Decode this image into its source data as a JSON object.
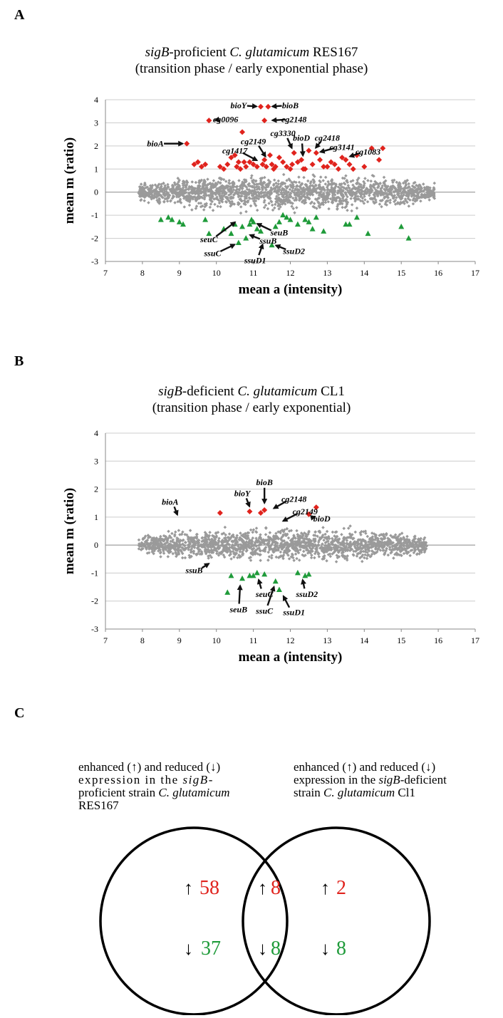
{
  "panel_labels": {
    "a": "A",
    "b": "B",
    "c": "C"
  },
  "colors": {
    "background": "#9a9a9a",
    "enhanced": "#e0231d",
    "reduced": "#1f9b3a",
    "arrow": "#111111",
    "grid": "#cccccc"
  },
  "chart_data": [
    {
      "id": "A",
      "type": "scatter",
      "title_line1_pre": "sigB",
      "title_line1_post": "-proficient ",
      "title_line1_species": "C. glutamicum",
      "title_line1_strain": " RES167",
      "title_line2": "(transition phase / early exponential phase)",
      "xlabel": "mean a (intensity)",
      "ylabel": "mean m (ratio)",
      "xlim": [
        7,
        17
      ],
      "ylim": [
        -3,
        4
      ],
      "xticks": [
        "7",
        "8",
        "9",
        "10",
        "11",
        "12",
        "13",
        "14",
        "15",
        "16",
        "17"
      ],
      "yticks": [
        "-3",
        "-2",
        "-1",
        "0",
        "1",
        "2",
        "3",
        "4"
      ],
      "grid": true,
      "background_band": {
        "x_min": 7.9,
        "x_max": 15.9,
        "y_max": 0.9,
        "y_min": -1.0
      },
      "series": [
        {
          "marker": "diamond",
          "color": "enhanced",
          "points": [
            [
              9.2,
              2.1
            ],
            [
              9.8,
              3.1
            ],
            [
              10.7,
              2.6
            ],
            [
              11.3,
              3.1
            ],
            [
              11.2,
              3.7
            ],
            [
              11.4,
              3.7
            ],
            [
              12.1,
              1.7
            ],
            [
              12.3,
              1.4
            ],
            [
              12.5,
              1.8
            ],
            [
              12.7,
              1.7
            ],
            [
              13.4,
              1.5
            ],
            [
              13.8,
              1.6
            ],
            [
              14.2,
              1.9
            ],
            [
              14.5,
              1.9
            ],
            [
              14.4,
              1.4
            ],
            [
              9.4,
              1.2
            ],
            [
              9.6,
              1.1
            ],
            [
              9.5,
              1.3
            ],
            [
              10.1,
              1.1
            ],
            [
              10.3,
              1.2
            ],
            [
              10.5,
              1.6
            ],
            [
              10.6,
              1.3
            ],
            [
              10.8,
              1.1
            ],
            [
              11.0,
              1.2
            ],
            [
              11.3,
              1.4
            ],
            [
              11.5,
              1.2
            ],
            [
              11.6,
              1.1
            ],
            [
              11.9,
              1.1
            ],
            [
              12.2,
              1.3
            ],
            [
              12.6,
              1.2
            ],
            [
              12.9,
              1.1
            ],
            [
              13.1,
              1.3
            ],
            [
              13.6,
              1.2
            ],
            [
              10.4,
              1.5
            ],
            [
              11.1,
              1.1
            ],
            [
              11.7,
              1.5
            ],
            [
              12.0,
              1.0
            ],
            [
              13.3,
              1.0
            ],
            [
              10.9,
              1.3
            ],
            [
              11.45,
              1.6
            ],
            [
              12.4,
              1.0
            ],
            [
              10.2,
              1.0
            ],
            [
              9.7,
              1.2
            ],
            [
              10.65,
              1.0
            ],
            [
              11.25,
              1.2
            ],
            [
              11.8,
              1.3
            ],
            [
              12.8,
              1.4
            ],
            [
              13.0,
              1.1
            ],
            [
              14.0,
              1.1
            ],
            [
              13.7,
              1.0
            ],
            [
              10.55,
              1.1
            ],
            [
              11.55,
              1.0
            ],
            [
              12.05,
              1.2
            ],
            [
              12.35,
              1.0
            ],
            [
              13.2,
              1.2
            ],
            [
              13.5,
              1.4
            ],
            [
              10.75,
              1.3
            ],
            [
              11.35,
              1.1
            ]
          ]
        },
        {
          "marker": "triangle",
          "color": "reduced",
          "points": [
            [
              8.5,
              -1.2
            ],
            [
              8.7,
              -1.1
            ],
            [
              8.8,
              -1.2
            ],
            [
              9.0,
              -1.3
            ],
            [
              9.1,
              -1.4
            ],
            [
              9.7,
              -1.2
            ],
            [
              9.8,
              -1.8
            ],
            [
              10.2,
              -1.6
            ],
            [
              10.4,
              -1.8
            ],
            [
              10.5,
              -1.4
            ],
            [
              10.6,
              -2.2
            ],
            [
              10.8,
              -2.0
            ],
            [
              10.9,
              -1.4
            ],
            [
              11.0,
              -1.3
            ],
            [
              11.2,
              -1.7
            ],
            [
              11.5,
              -2.3
            ],
            [
              11.6,
              -1.5
            ],
            [
              11.7,
              -1.3
            ],
            [
              11.9,
              -1.1
            ],
            [
              12.0,
              -1.2
            ],
            [
              12.2,
              -1.4
            ],
            [
              12.5,
              -1.3
            ],
            [
              12.7,
              -1.1
            ],
            [
              12.9,
              -1.7
            ],
            [
              13.5,
              -1.4
            ],
            [
              13.8,
              -1.1
            ],
            [
              14.1,
              -1.8
            ],
            [
              15.0,
              -1.5
            ],
            [
              15.2,
              -2.0
            ],
            [
              10.7,
              -1.5
            ],
            [
              10.95,
              -1.2
            ],
            [
              11.1,
              -1.6
            ],
            [
              11.8,
              -1.0
            ],
            [
              12.4,
              -1.2
            ],
            [
              12.6,
              -1.6
            ],
            [
              13.6,
              -1.4
            ]
          ]
        }
      ],
      "annotations": [
        {
          "text": "bioY",
          "tx": 10.6,
          "ty": 3.75,
          "ax": 11.2,
          "ay": 3.7
        },
        {
          "text": "bioB",
          "tx": 12.0,
          "ty": 3.75,
          "ax": 11.4,
          "ay": 3.7
        },
        {
          "text": "cg0096",
          "tx": 10.25,
          "ty": 3.15,
          "ax": 9.85,
          "ay": 3.1
        },
        {
          "text": "cg2148",
          "tx": 12.1,
          "ty": 3.15,
          "ax": 11.4,
          "ay": 3.1
        },
        {
          "text": "bioA",
          "tx": 8.35,
          "ty": 2.1,
          "ax": 9.2,
          "ay": 2.1
        },
        {
          "text": "cg3330",
          "tx": 11.8,
          "ty": 2.55,
          "ax": 12.1,
          "ay": 1.75
        },
        {
          "text": "bioD",
          "tx": 12.3,
          "ty": 2.35,
          "ax": 12.35,
          "ay": 1.4
        },
        {
          "text": "cg2418",
          "tx": 13.0,
          "ty": 2.35,
          "ax": 12.6,
          "ay": 1.8
        },
        {
          "text": "cg2149",
          "tx": 11.0,
          "ty": 2.2,
          "ax": 11.4,
          "ay": 1.4
        },
        {
          "text": "cg3141",
          "tx": 13.4,
          "ty": 1.95,
          "ax": 12.7,
          "ay": 1.7
        },
        {
          "text": "cg1417",
          "tx": 10.5,
          "ty": 1.8,
          "ax": 11.2,
          "ay": 1.3
        },
        {
          "text": "cg1083",
          "tx": 14.1,
          "ty": 1.75,
          "ax": 13.5,
          "ay": 1.5
        },
        {
          "text": "seuB",
          "tx": 11.7,
          "ty": -1.75,
          "ax": 11.0,
          "ay": -1.3
        },
        {
          "text": "seuC",
          "tx": 9.8,
          "ty": -2.05,
          "ax": 10.6,
          "ay": -1.2
        },
        {
          "text": "ssuB",
          "tx": 11.4,
          "ty": -2.1,
          "ax": 10.8,
          "ay": -1.8
        },
        {
          "text": "ssuD2",
          "tx": 12.1,
          "ty": -2.55,
          "ax": 11.5,
          "ay": -2.25
        },
        {
          "text": "ssuC",
          "tx": 9.9,
          "ty": -2.65,
          "ax": 10.6,
          "ay": -2.2
        },
        {
          "text": "ssuD1",
          "tx": 11.05,
          "ty": -2.95,
          "ax": 11.3,
          "ay": -2.1
        }
      ]
    },
    {
      "id": "B",
      "type": "scatter",
      "title_line1_pre": "sigB",
      "title_line1_post": "-deficient ",
      "title_line1_species": "C. glutamicum",
      "title_line1_strain": " CL1",
      "title_line2": "(transition phase / early exponential)",
      "xlabel": "mean a (intensity)",
      "ylabel": "mean m (ratio)",
      "xlim": [
        7,
        17
      ],
      "ylim": [
        -3,
        4
      ],
      "xticks": [
        "7",
        "8",
        "9",
        "10",
        "11",
        "12",
        "13",
        "14",
        "15",
        "16",
        "17"
      ],
      "yticks": [
        "-3",
        "-2",
        "-1",
        "0",
        "1",
        "2",
        "3",
        "4"
      ],
      "grid": true,
      "background_band": {
        "x_min": 7.9,
        "x_max": 15.7,
        "y_max": 0.75,
        "y_min": -0.7
      },
      "series": [
        {
          "marker": "diamond",
          "color": "enhanced",
          "points": [
            [
              10.1,
              1.15
            ],
            [
              10.9,
              1.2
            ],
            [
              11.2,
              1.15
            ],
            [
              11.3,
              1.25
            ],
            [
              12.5,
              1.1
            ],
            [
              12.7,
              1.35
            ]
          ]
        },
        {
          "marker": "triangle",
          "color": "reduced",
          "points": [
            [
              10.3,
              -1.7
            ],
            [
              10.4,
              -1.1
            ],
            [
              10.7,
              -1.2
            ],
            [
              10.9,
              -1.1
            ],
            [
              11.0,
              -1.1
            ],
            [
              11.3,
              -1.05
            ],
            [
              11.6,
              -1.3
            ],
            [
              11.7,
              -1.6
            ],
            [
              12.2,
              -1.0
            ],
            [
              12.4,
              -1.1
            ],
            [
              12.5,
              -1.05
            ],
            [
              11.1,
              -1.0
            ]
          ]
        }
      ],
      "annotations": [
        {
          "text": "bioA",
          "tx": 8.75,
          "ty": 1.55,
          "ax": 9.0,
          "ay": 0.95
        },
        {
          "text": "bioY",
          "tx": 10.7,
          "ty": 1.85,
          "ax": 10.95,
          "ay": 1.25
        },
        {
          "text": "bioB",
          "tx": 11.3,
          "ty": 2.25,
          "ax": 11.3,
          "ay": 1.35
        },
        {
          "text": "cg2148",
          "tx": 12.1,
          "ty": 1.65,
          "ax": 11.45,
          "ay": 1.25
        },
        {
          "text": "cg2149",
          "tx": 12.4,
          "ty": 1.2,
          "ax": 11.7,
          "ay": 0.8
        },
        {
          "text": "bioD",
          "tx": 12.85,
          "ty": 0.95,
          "ax": 12.55,
          "ay": 1.05
        },
        {
          "text": "ssuB",
          "tx": 9.4,
          "ty": -0.9,
          "ax": 9.9,
          "ay": -0.6
        },
        {
          "text": "seuC",
          "tx": 11.3,
          "ty": -1.75,
          "ax": 11.1,
          "ay": -1.1
        },
        {
          "text": "ssuD2",
          "tx": 12.45,
          "ty": -1.75,
          "ax": 12.3,
          "ay": -1.1
        },
        {
          "text": "seuB",
          "tx": 10.6,
          "ty": -2.3,
          "ax": 10.65,
          "ay": -1.3
        },
        {
          "text": "ssuC",
          "tx": 11.3,
          "ty": -2.35,
          "ax": 11.6,
          "ay": -1.35
        },
        {
          "text": "ssuD1",
          "tx": 12.1,
          "ty": -2.4,
          "ax": 11.75,
          "ay": -1.7
        }
      ]
    }
  ],
  "venn": {
    "left_label": {
      "line1": "enhanced (↑) and reduced (↓)",
      "line2_pre": "expression in the ",
      "line2_italic": "sigB",
      "line2_post": "-",
      "line3_pre": "proficient strain ",
      "line3_italic": "C. glutamicum",
      "line4": "RES167"
    },
    "right_label": {
      "line1": "enhanced (↑) and reduced (↓)",
      "line2_pre": "expression in the ",
      "line2_italic": "sigB",
      "line2_post": "-deficient",
      "line3_pre": "strain ",
      "line3_italic": "C. glutamicum",
      "line3_post": " Cl1"
    },
    "up_arrow": "↑",
    "down_arrow": "↓",
    "left_only": {
      "enhanced": "58",
      "reduced": "37"
    },
    "overlap": {
      "enhanced": "8",
      "reduced": "8"
    },
    "right_only": {
      "enhanced": "2",
      "reduced": "8"
    }
  }
}
